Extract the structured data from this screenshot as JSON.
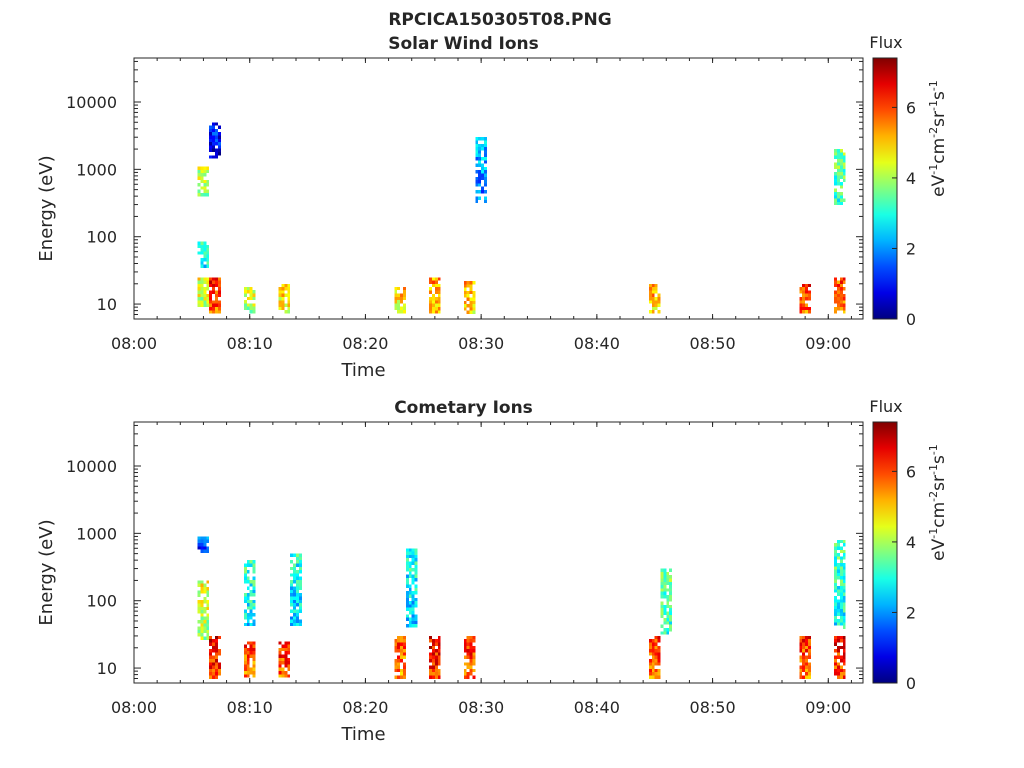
{
  "figure_title": "RPCICA150305T08.PNG",
  "colorbar": {
    "title": "Flux",
    "label_parts": [
      "eV",
      "-1",
      "cm",
      "-2",
      "sr",
      "-1",
      "s",
      "-1"
    ],
    "ticks": [
      "0",
      "2",
      "4",
      "6"
    ],
    "range": [
      0,
      7.4
    ],
    "colormap": "jet"
  },
  "chart_data": [
    {
      "type": "heatmap",
      "title": "Solar Wind Ions",
      "xlabel": "Time",
      "ylabel": "Energy (eV)",
      "xlim": [
        "08:00",
        "09:03"
      ],
      "ylim": [
        6,
        45000
      ],
      "yscale": "log",
      "xticks": [
        "08:00",
        "08:10",
        "08:20",
        "08:30",
        "08:40",
        "08:50",
        "09:00"
      ],
      "yticks": [
        "10",
        "100",
        "1000",
        "10000"
      ],
      "grid": false,
      "cells": [
        {
          "t": "08:07",
          "e_low": 7,
          "e_high": 25,
          "flux": 6.3
        },
        {
          "t": "08:06",
          "e_low": 9,
          "e_high": 25,
          "flux": 4.6
        },
        {
          "t": "08:06",
          "e_low": 35,
          "e_high": 85,
          "flux": 3.3
        },
        {
          "t": "08:06",
          "e_low": 400,
          "e_high": 1100,
          "flux": 4.3
        },
        {
          "t": "08:07",
          "e_low": 1500,
          "e_high": 5000,
          "flux": 1.2
        },
        {
          "t": "08:10",
          "e_low": 7,
          "e_high": 18,
          "flux": 4.5
        },
        {
          "t": "08:13",
          "e_low": 7,
          "e_high": 20,
          "flux": 5.0
        },
        {
          "t": "08:23",
          "e_low": 7,
          "e_high": 18,
          "flux": 5.1
        },
        {
          "t": "08:26",
          "e_low": 7,
          "e_high": 25,
          "flux": 5.4
        },
        {
          "t": "08:29",
          "e_low": 7,
          "e_high": 22,
          "flux": 5.3
        },
        {
          "t": "08:30",
          "e_low": 300,
          "e_high": 3000,
          "flux": 2.4
        },
        {
          "t": "08:45",
          "e_low": 7,
          "e_high": 20,
          "flux": 5.4
        },
        {
          "t": "08:58",
          "e_low": 7,
          "e_high": 20,
          "flux": 6.2
        },
        {
          "t": "09:01",
          "e_low": 7,
          "e_high": 25,
          "flux": 6.0
        },
        {
          "t": "09:01",
          "e_low": 300,
          "e_high": 2000,
          "flux": 3.7
        }
      ]
    },
    {
      "type": "heatmap",
      "title": "Cometary Ions",
      "xlabel": "Time",
      "ylabel": "Energy (eV)",
      "xlim": [
        "08:00",
        "09:03"
      ],
      "ylim": [
        6,
        45000
      ],
      "yscale": "log",
      "xticks": [
        "08:00",
        "08:10",
        "08:20",
        "08:30",
        "08:40",
        "08:50",
        "09:00"
      ],
      "yticks": [
        "10",
        "100",
        "1000",
        "10000"
      ],
      "grid": false,
      "cells": [
        {
          "t": "08:07",
          "e_low": 7,
          "e_high": 30,
          "flux": 6.6
        },
        {
          "t": "08:06",
          "e_low": 25,
          "e_high": 200,
          "flux": 4.5
        },
        {
          "t": "08:06",
          "e_low": 500,
          "e_high": 900,
          "flux": 1.6
        },
        {
          "t": "08:10",
          "e_low": 7,
          "e_high": 25,
          "flux": 6.1
        },
        {
          "t": "08:10",
          "e_low": 40,
          "e_high": 400,
          "flux": 3.2
        },
        {
          "t": "08:13",
          "e_low": 7,
          "e_high": 25,
          "flux": 6.3
        },
        {
          "t": "08:14",
          "e_low": 40,
          "e_high": 500,
          "flux": 3.0
        },
        {
          "t": "08:23",
          "e_low": 7,
          "e_high": 30,
          "flux": 6.0
        },
        {
          "t": "08:24",
          "e_low": 40,
          "e_high": 600,
          "flux": 3.0
        },
        {
          "t": "08:26",
          "e_low": 7,
          "e_high": 30,
          "flux": 6.6
        },
        {
          "t": "08:29",
          "e_low": 7,
          "e_high": 30,
          "flux": 6.3
        },
        {
          "t": "08:45",
          "e_low": 7,
          "e_high": 30,
          "flux": 6.1
        },
        {
          "t": "08:46",
          "e_low": 30,
          "e_high": 300,
          "flux": 3.6
        },
        {
          "t": "08:58",
          "e_low": 7,
          "e_high": 30,
          "flux": 6.2
        },
        {
          "t": "09:01",
          "e_low": 7,
          "e_high": 30,
          "flux": 6.4
        },
        {
          "t": "09:01",
          "e_low": 40,
          "e_high": 800,
          "flux": 3.4
        }
      ]
    }
  ]
}
